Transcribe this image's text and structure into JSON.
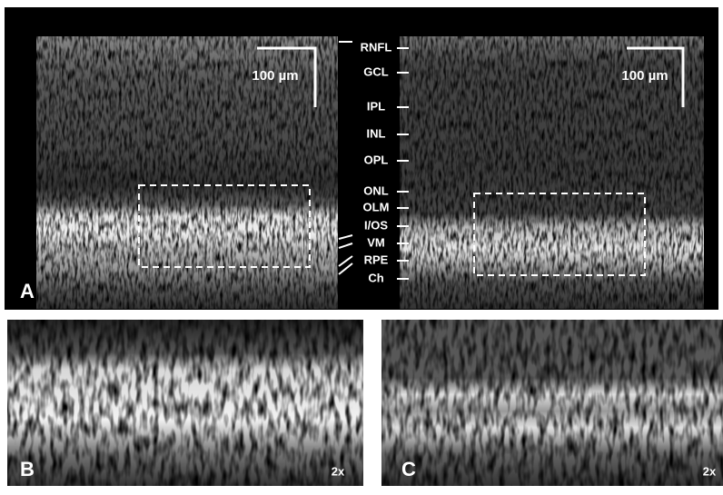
{
  "panel_a": {
    "label": "A",
    "scale_bars": [
      "100 µm",
      "100 µm"
    ],
    "layers": [
      "RNFL",
      "GCL",
      "IPL",
      "INL",
      "OPL",
      "ONL",
      "OLM",
      "I/OS",
      "VM",
      "RPE",
      "Ch"
    ]
  },
  "panel_b": {
    "label": "B",
    "magnification": "2x"
  },
  "panel_c": {
    "label": "C",
    "magnification": "2x"
  }
}
